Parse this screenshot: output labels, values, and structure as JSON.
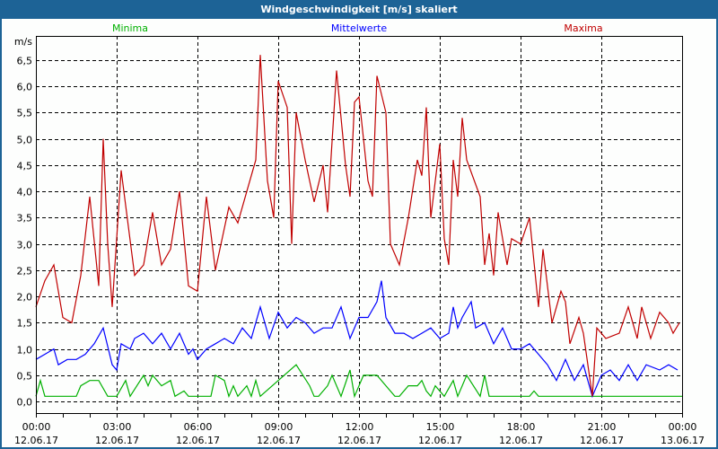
{
  "chart_data": {
    "type": "line",
    "title": "Windgeschwindigkeit [m/s] skaliert",
    "ylabel": "m/s",
    "xlabel": "",
    "ylim": [
      -0.22,
      6.96
    ],
    "xlim_minutes": [
      0,
      1440
    ],
    "grid": true,
    "y_ticks": [
      "0,0",
      "0,5",
      "1,0",
      "1,5",
      "2,0",
      "2,5",
      "3,0",
      "3,5",
      "4,0",
      "4,5",
      "5,0",
      "5,5",
      "6,0",
      "6,5"
    ],
    "x_ticks": [
      {
        "time": "00:00",
        "date": "12.06.17"
      },
      {
        "time": "03:00",
        "date": "12.06.17"
      },
      {
        "time": "06:00",
        "date": "12.06.17"
      },
      {
        "time": "09:00",
        "date": "12.06.17"
      },
      {
        "time": "12:00",
        "date": "12.06.17"
      },
      {
        "time": "15:00",
        "date": "12.06.17"
      },
      {
        "time": "18:00",
        "date": "12.06.17"
      },
      {
        "time": "21:00",
        "date": "12.06.17"
      },
      {
        "time": "00:00",
        "date": "13.06.17"
      }
    ],
    "series": [
      {
        "name": "Minima",
        "color": "#00b000",
        "legend_position": "top-left",
        "points": [
          [
            0,
            0.1
          ],
          [
            10,
            0.4
          ],
          [
            20,
            0.1
          ],
          [
            90,
            0.1
          ],
          [
            100,
            0.3
          ],
          [
            120,
            0.4
          ],
          [
            140,
            0.4
          ],
          [
            160,
            0.1
          ],
          [
            180,
            0.1
          ],
          [
            200,
            0.4
          ],
          [
            210,
            0.1
          ],
          [
            240,
            0.5
          ],
          [
            250,
            0.3
          ],
          [
            260,
            0.5
          ],
          [
            280,
            0.3
          ],
          [
            300,
            0.4
          ],
          [
            310,
            0.1
          ],
          [
            330,
            0.2
          ],
          [
            340,
            0.1
          ],
          [
            390,
            0.1
          ],
          [
            400,
            0.5
          ],
          [
            420,
            0.4
          ],
          [
            430,
            0.1
          ],
          [
            440,
            0.3
          ],
          [
            450,
            0.1
          ],
          [
            470,
            0.3
          ],
          [
            480,
            0.1
          ],
          [
            490,
            0.4
          ],
          [
            500,
            0.1
          ],
          [
            580,
            0.7
          ],
          [
            610,
            0.3
          ],
          [
            620,
            0.1
          ],
          [
            630,
            0.1
          ],
          [
            650,
            0.3
          ],
          [
            660,
            0.5
          ],
          [
            680,
            0.1
          ],
          [
            700,
            0.6
          ],
          [
            710,
            0.1
          ],
          [
            730,
            0.5
          ],
          [
            760,
            0.5
          ],
          [
            780,
            0.3
          ],
          [
            800,
            0.1
          ],
          [
            810,
            0.1
          ],
          [
            830,
            0.3
          ],
          [
            850,
            0.3
          ],
          [
            860,
            0.4
          ],
          [
            870,
            0.2
          ],
          [
            880,
            0.1
          ],
          [
            890,
            0.3
          ],
          [
            910,
            0.1
          ],
          [
            930,
            0.4
          ],
          [
            940,
            0.1
          ],
          [
            960,
            0.5
          ],
          [
            990,
            0.1
          ],
          [
            1000,
            0.5
          ],
          [
            1010,
            0.1
          ],
          [
            1100,
            0.1
          ],
          [
            1110,
            0.2
          ],
          [
            1120,
            0.1
          ],
          [
            1440,
            0.1
          ]
        ]
      },
      {
        "name": "Mittelwerte",
        "color": "#0000ff",
        "legend_position": "top-center",
        "points": [
          [
            0,
            0.8
          ],
          [
            20,
            0.9
          ],
          [
            40,
            1.0
          ],
          [
            50,
            0.7
          ],
          [
            70,
            0.8
          ],
          [
            90,
            0.8
          ],
          [
            110,
            0.9
          ],
          [
            130,
            1.1
          ],
          [
            150,
            1.4
          ],
          [
            170,
            0.7
          ],
          [
            180,
            0.6
          ],
          [
            190,
            1.1
          ],
          [
            210,
            1.0
          ],
          [
            220,
            1.2
          ],
          [
            240,
            1.3
          ],
          [
            260,
            1.1
          ],
          [
            280,
            1.3
          ],
          [
            300,
            1.0
          ],
          [
            320,
            1.3
          ],
          [
            340,
            0.9
          ],
          [
            350,
            1.0
          ],
          [
            360,
            0.8
          ],
          [
            380,
            1.0
          ],
          [
            400,
            1.1
          ],
          [
            420,
            1.2
          ],
          [
            440,
            1.1
          ],
          [
            460,
            1.4
          ],
          [
            480,
            1.2
          ],
          [
            500,
            1.8
          ],
          [
            520,
            1.2
          ],
          [
            540,
            1.7
          ],
          [
            560,
            1.4
          ],
          [
            580,
            1.6
          ],
          [
            600,
            1.5
          ],
          [
            620,
            1.3
          ],
          [
            640,
            1.4
          ],
          [
            660,
            1.4
          ],
          [
            680,
            1.8
          ],
          [
            700,
            1.2
          ],
          [
            720,
            1.6
          ],
          [
            740,
            1.6
          ],
          [
            760,
            1.9
          ],
          [
            770,
            2.3
          ],
          [
            780,
            1.6
          ],
          [
            800,
            1.3
          ],
          [
            820,
            1.3
          ],
          [
            840,
            1.2
          ],
          [
            860,
            1.3
          ],
          [
            880,
            1.4
          ],
          [
            900,
            1.2
          ],
          [
            920,
            1.3
          ],
          [
            930,
            1.8
          ],
          [
            940,
            1.4
          ],
          [
            950,
            1.6
          ],
          [
            970,
            1.9
          ],
          [
            980,
            1.4
          ],
          [
            1000,
            1.5
          ],
          [
            1020,
            1.1
          ],
          [
            1040,
            1.4
          ],
          [
            1060,
            1.0
          ],
          [
            1080,
            1.0
          ],
          [
            1100,
            1.1
          ],
          [
            1120,
            0.9
          ],
          [
            1140,
            0.7
          ],
          [
            1160,
            0.4
          ],
          [
            1180,
            0.8
          ],
          [
            1200,
            0.4
          ],
          [
            1220,
            0.7
          ],
          [
            1240,
            0.1
          ],
          [
            1260,
            0.5
          ],
          [
            1280,
            0.6
          ],
          [
            1300,
            0.4
          ],
          [
            1320,
            0.7
          ],
          [
            1340,
            0.4
          ],
          [
            1360,
            0.7
          ],
          [
            1390,
            0.6
          ],
          [
            1410,
            0.7
          ],
          [
            1430,
            0.6
          ]
        ]
      },
      {
        "name": "Maxima",
        "color": "#c00000",
        "legend_position": "top-right",
        "points": [
          [
            0,
            1.8
          ],
          [
            20,
            2.3
          ],
          [
            40,
            2.6
          ],
          [
            60,
            1.6
          ],
          [
            80,
            1.5
          ],
          [
            100,
            2.4
          ],
          [
            120,
            3.9
          ],
          [
            140,
            2.2
          ],
          [
            150,
            5.0
          ],
          [
            160,
            3.0
          ],
          [
            170,
            1.8
          ],
          [
            190,
            4.4
          ],
          [
            220,
            2.4
          ],
          [
            240,
            2.6
          ],
          [
            260,
            3.6
          ],
          [
            280,
            2.6
          ],
          [
            300,
            2.9
          ],
          [
            320,
            4.0
          ],
          [
            340,
            2.2
          ],
          [
            360,
            2.1
          ],
          [
            380,
            3.9
          ],
          [
            400,
            2.5
          ],
          [
            430,
            3.7
          ],
          [
            450,
            3.4
          ],
          [
            470,
            4.0
          ],
          [
            490,
            4.6
          ],
          [
            500,
            6.6
          ],
          [
            516,
            4.2
          ],
          [
            530,
            3.5
          ],
          [
            540,
            6.1
          ],
          [
            560,
            5.6
          ],
          [
            570,
            3.0
          ],
          [
            580,
            5.5
          ],
          [
            600,
            4.6
          ],
          [
            620,
            3.8
          ],
          [
            640,
            4.5
          ],
          [
            650,
            3.6
          ],
          [
            670,
            6.3
          ],
          [
            690,
            4.5
          ],
          [
            700,
            3.9
          ],
          [
            710,
            5.7
          ],
          [
            720,
            5.8
          ],
          [
            740,
            4.2
          ],
          [
            750,
            3.9
          ],
          [
            760,
            6.2
          ],
          [
            780,
            5.5
          ],
          [
            790,
            3.0
          ],
          [
            810,
            2.6
          ],
          [
            830,
            3.5
          ],
          [
            850,
            4.6
          ],
          [
            860,
            4.3
          ],
          [
            870,
            5.6
          ],
          [
            880,
            3.5
          ],
          [
            900,
            4.9
          ],
          [
            910,
            3.1
          ],
          [
            920,
            2.6
          ],
          [
            930,
            4.6
          ],
          [
            940,
            3.9
          ],
          [
            950,
            5.4
          ],
          [
            960,
            4.6
          ],
          [
            990,
            3.9
          ],
          [
            1000,
            2.6
          ],
          [
            1010,
            3.2
          ],
          [
            1020,
            2.4
          ],
          [
            1030,
            3.6
          ],
          [
            1050,
            2.6
          ],
          [
            1060,
            3.1
          ],
          [
            1080,
            3.0
          ],
          [
            1100,
            3.5
          ],
          [
            1120,
            1.8
          ],
          [
            1130,
            2.9
          ],
          [
            1150,
            1.5
          ],
          [
            1170,
            2.1
          ],
          [
            1180,
            1.9
          ],
          [
            1190,
            1.1
          ],
          [
            1210,
            1.6
          ],
          [
            1220,
            1.3
          ],
          [
            1240,
            0.1
          ],
          [
            1250,
            1.4
          ],
          [
            1270,
            1.2
          ],
          [
            1300,
            1.3
          ],
          [
            1320,
            1.8
          ],
          [
            1340,
            1.2
          ],
          [
            1350,
            1.8
          ],
          [
            1370,
            1.2
          ],
          [
            1390,
            1.7
          ],
          [
            1410,
            1.5
          ],
          [
            1420,
            1.3
          ],
          [
            1434,
            1.5
          ]
        ]
      }
    ]
  }
}
